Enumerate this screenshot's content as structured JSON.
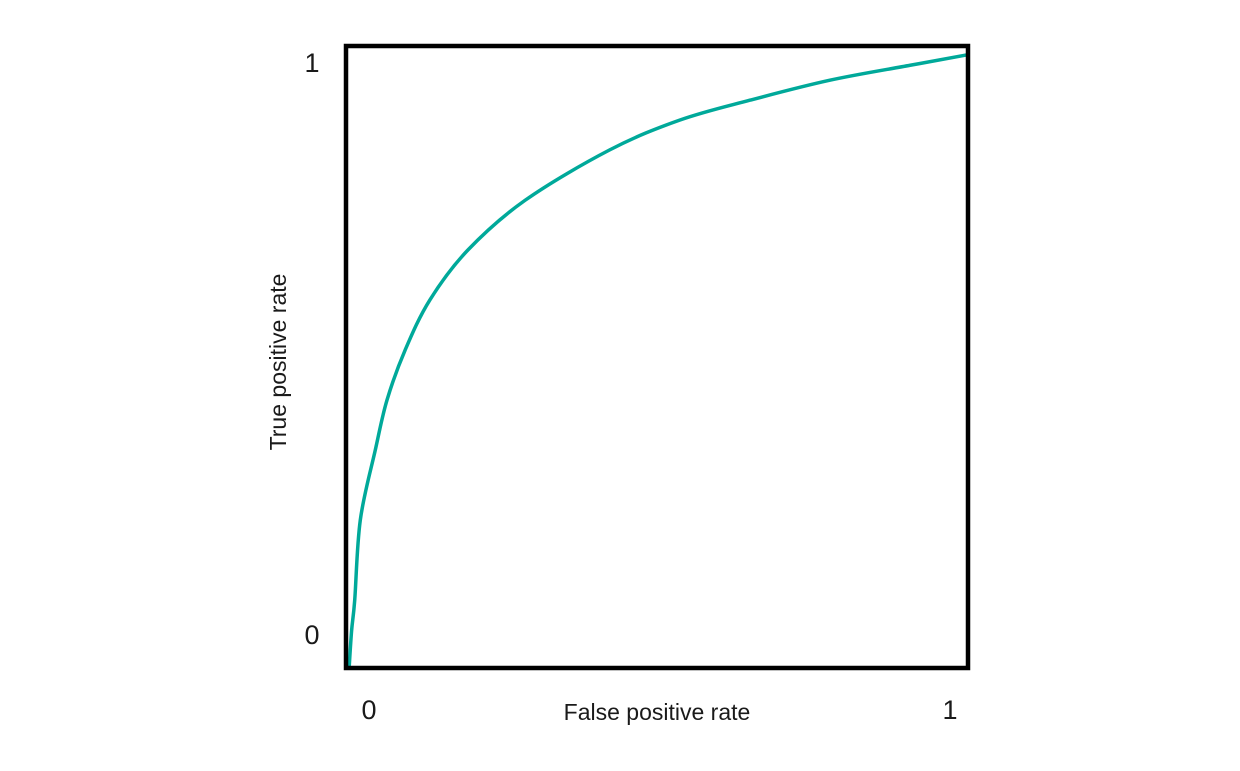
{
  "chart_data": {
    "type": "line",
    "x_label": "False positive rate",
    "y_label": "True positive rate",
    "xlim": [
      0,
      1
    ],
    "ylim": [
      0,
      1
    ],
    "xticks": [
      0,
      1
    ],
    "yticks": [
      0,
      1
    ],
    "grid": false,
    "series": [
      {
        "color": "#00a99a",
        "x": [
          0.005,
          0.009,
          0.014,
          0.023,
          0.047,
          0.066,
          0.095,
          0.135,
          0.196,
          0.288,
          0.424,
          0.537,
          0.65,
          0.778,
          0.907,
          1.0
        ],
        "values": [
          0,
          0.06,
          0.109,
          0.238,
          0.35,
          0.431,
          0.511,
          0.592,
          0.672,
          0.752,
          0.833,
          0.881,
          0.913,
          0.945,
          0.969,
          0.986
        ]
      }
    ]
  }
}
